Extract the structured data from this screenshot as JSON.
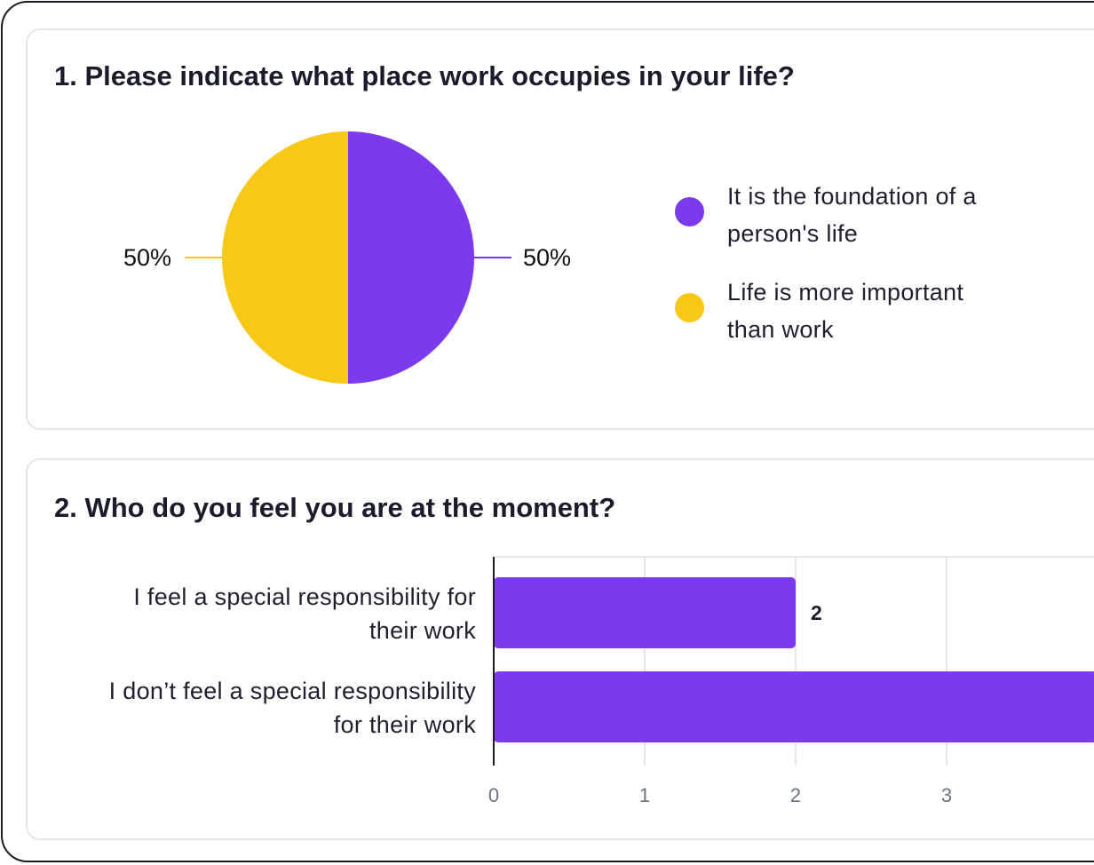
{
  "questions": [
    {
      "title": "1. Please indicate what place work occupies in your life?"
    },
    {
      "title": "2. Who do you feel you are at the moment?"
    }
  ],
  "colors": {
    "purple": "#7c3aed",
    "yellow": "#f7c815",
    "axis": "#1b1b25",
    "grid": "#e5e8ee",
    "tick_text": "#6b7285"
  },
  "chart_data": [
    {
      "type": "pie",
      "title": "1. Please indicate what place work occupies in your life?",
      "slices": [
        {
          "label": "It is the foundation of a person's life",
          "value": 50,
          "display": "50%",
          "color": "#7c3aed"
        },
        {
          "label": "Life is more important than work",
          "value": 50,
          "display": "50%",
          "color": "#f7c815"
        }
      ],
      "legend": {
        "position": "right",
        "items": [
          {
            "label": "It is the foundation of a person's life",
            "color": "#7c3aed"
          },
          {
            "label": "Life is more important than work",
            "color": "#f7c815"
          }
        ]
      }
    },
    {
      "type": "bar",
      "orientation": "horizontal",
      "title": "2. Who do you feel you are at the moment?",
      "categories": [
        "I feel a special responsibility for their work",
        "I don’t feel a special responsibility for their work"
      ],
      "values": [
        2,
        4
      ],
      "data_labels": [
        "2",
        ""
      ],
      "xticks": [
        "0",
        "1",
        "2",
        "3"
      ],
      "xlim": [
        0,
        4
      ],
      "grid": true,
      "color": "#7c3aed"
    }
  ]
}
